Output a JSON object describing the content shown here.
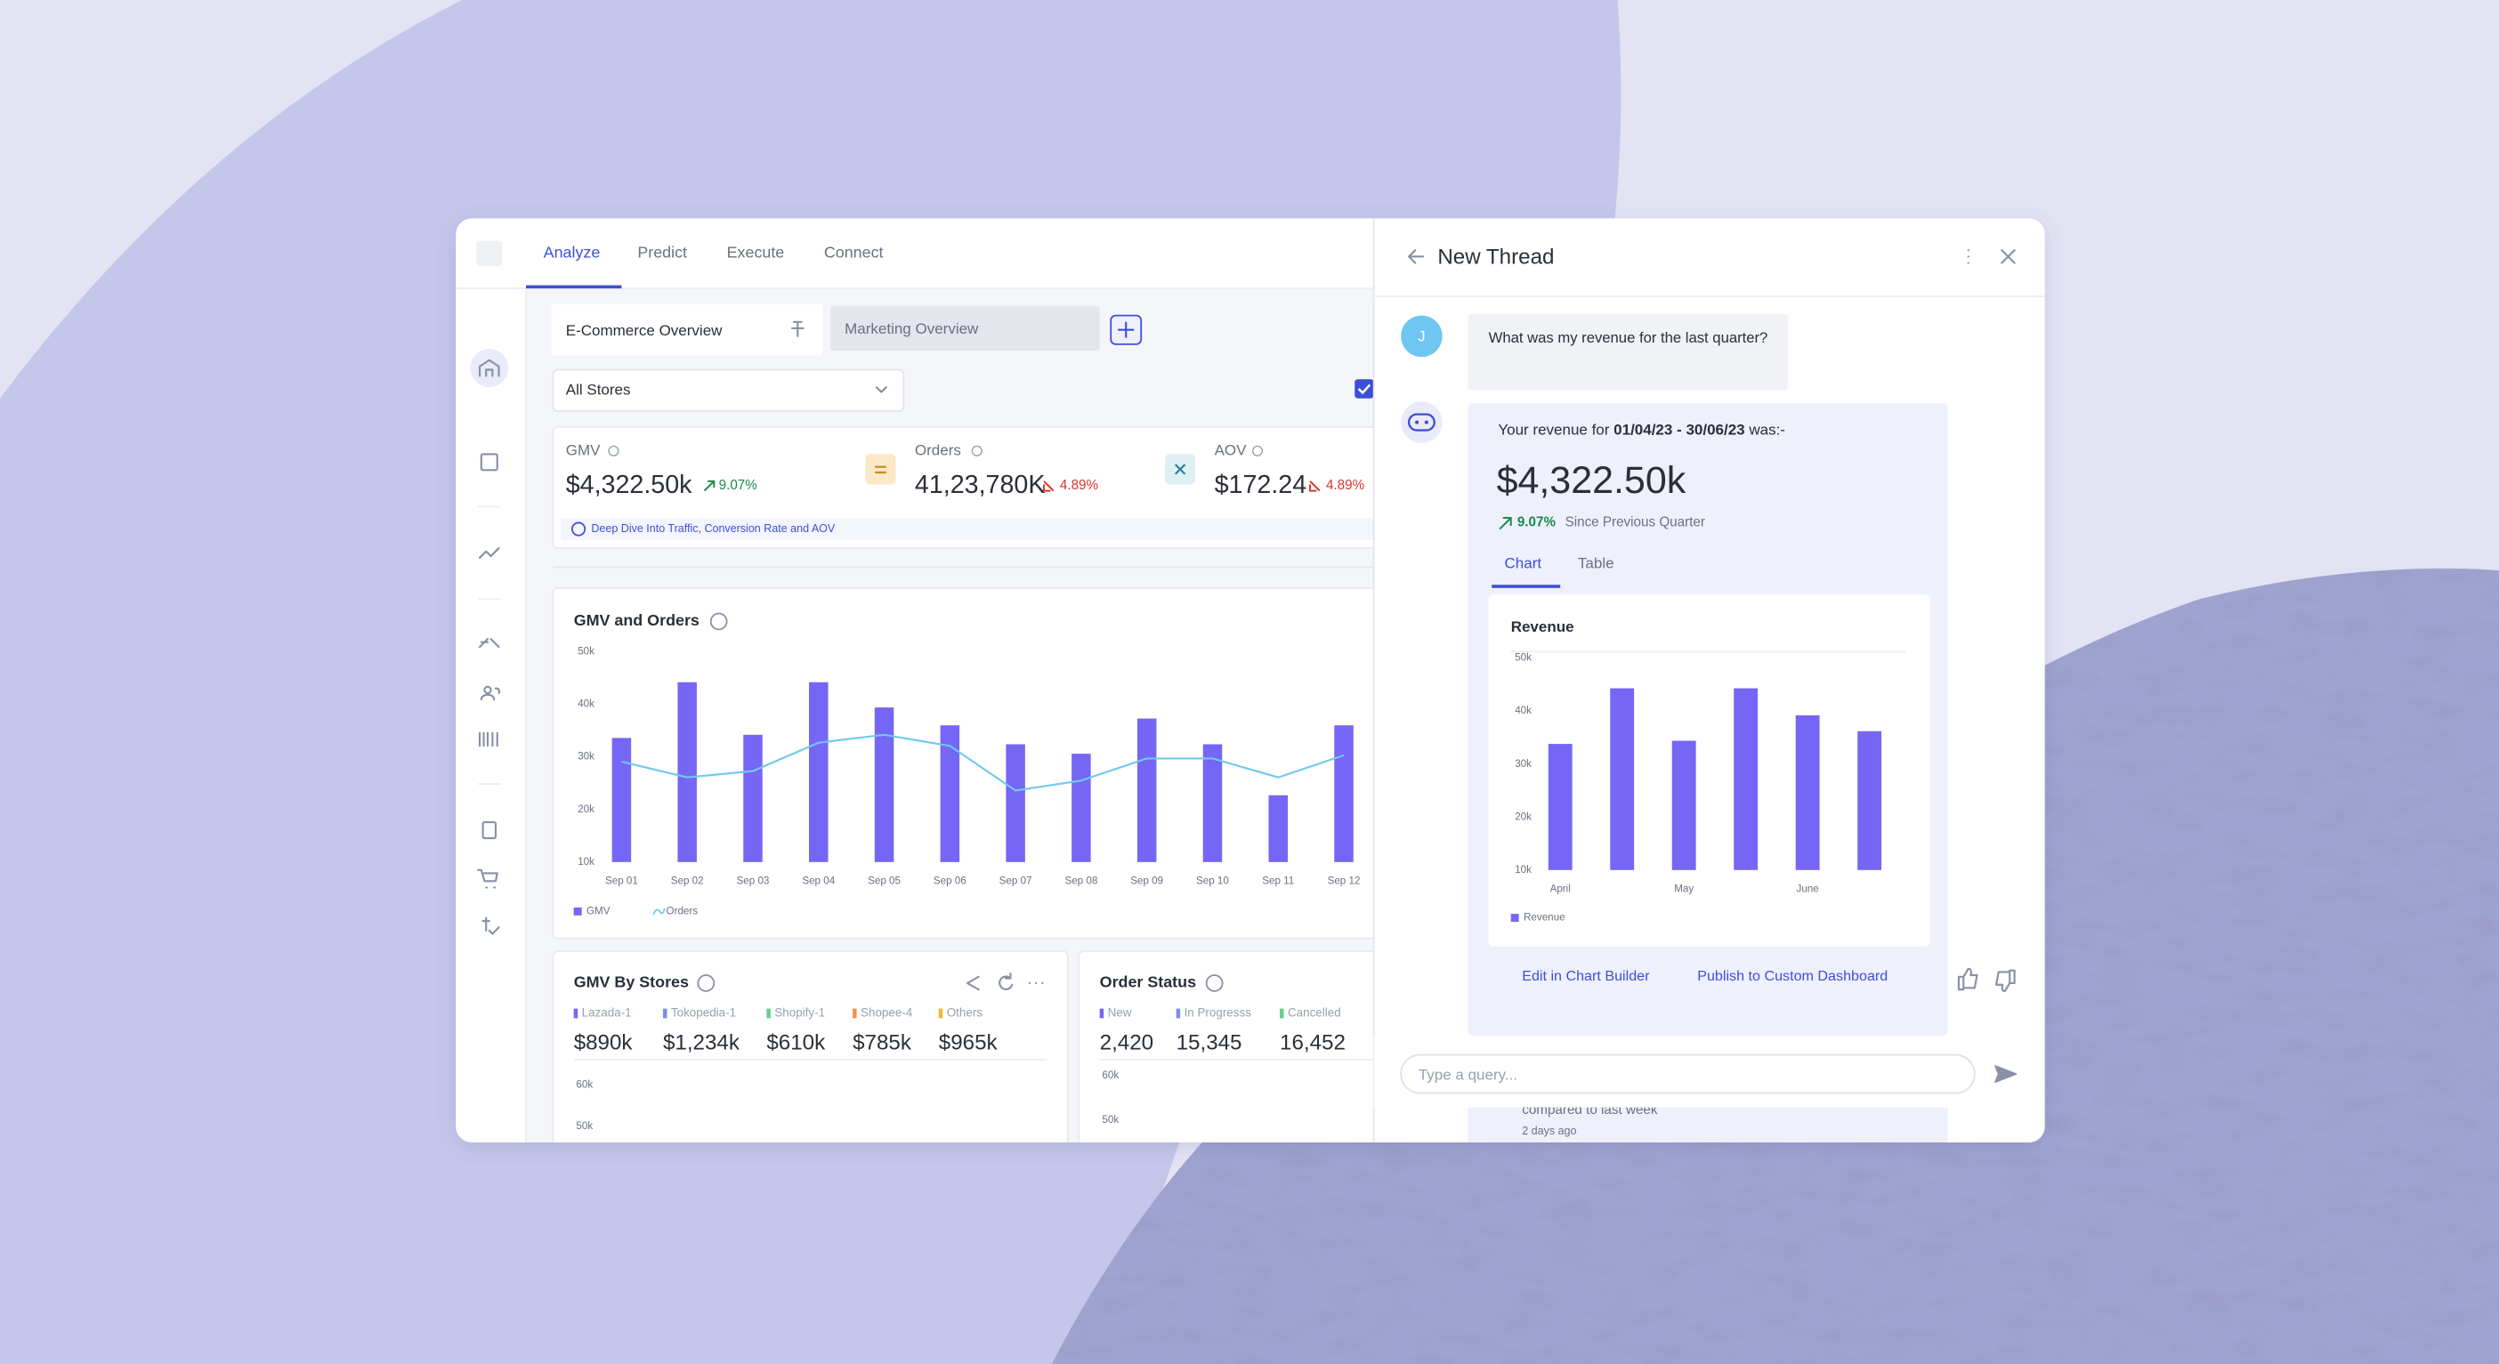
{
  "nav": {
    "tabs": [
      "Analyze",
      "Predict",
      "Execute",
      "Connect"
    ]
  },
  "dashboard": {
    "tabs": [
      "E-Commerce Overview",
      "Marketing Overview"
    ],
    "store_filter": "All Stores",
    "kpis": [
      {
        "label": "GMV",
        "value": "$4,322.50k",
        "change": "9.07%"
      },
      {
        "label": "Orders",
        "value": "41,23,780K",
        "change": "4.89%"
      },
      {
        "label": "AOV",
        "value": "$172.24",
        "change": "4.89%"
      }
    ],
    "kpi_link": "Deep Dive Into Traffic, Conversion Rate and AOV"
  },
  "chart_data": [
    {
      "type": "bar",
      "title": "GMV and Orders",
      "categories": [
        "Sep 01",
        "Sep 02",
        "Sep 03",
        "Sep 04",
        "Sep 05",
        "Sep 06",
        "Sep 07",
        "Sep 08",
        "Sep 09",
        "Sep 10",
        "Sep 11",
        "Sep 12"
      ],
      "series": [
        {
          "name": "GMV",
          "color": "#7566f5",
          "values": [
            33600,
            44200,
            34200,
            44200,
            39400,
            36000,
            32400,
            30600,
            37300,
            32400,
            22700,
            36000
          ]
        },
        {
          "name": "Orders",
          "type": "line",
          "color": "#72c8ef",
          "values": [
            29100,
            26100,
            27300,
            32700,
            34200,
            32100,
            23600,
            25500,
            29700,
            29700,
            26100,
            30300
          ]
        }
      ],
      "ylim": [
        10000,
        50000
      ],
      "yticks": [
        {
          "value": 10000,
          "label": "10k"
        },
        {
          "value": 20000,
          "label": "20k"
        },
        {
          "value": 30000,
          "label": "30k"
        },
        {
          "value": 40000,
          "label": "40k"
        },
        {
          "value": 50000,
          "label": "50k"
        }
      ]
    },
    {
      "type": "line",
      "title": "GMV By Stores",
      "series": [
        {
          "name": "Lazada-1",
          "color": "#7566f5",
          "total": "$890k"
        },
        {
          "name": "Tokopedia-1",
          "color": "#7b8cf2",
          "total": "$1,234k"
        },
        {
          "name": "Shopify-1",
          "color": "#5fd08e",
          "total": "$610k"
        },
        {
          "name": "Shopee-4",
          "color": "#f5914a",
          "total": "$785k"
        },
        {
          "name": "Others",
          "color": "#f5b82e",
          "total": "$965k"
        }
      ],
      "ylim": [
        0,
        60000
      ],
      "yticks": [
        {
          "value": 50000,
          "label": "50k"
        },
        {
          "value": 60000,
          "label": "60k"
        }
      ]
    },
    {
      "type": "bar",
      "title": "Order Status",
      "series": [
        {
          "name": "New",
          "color": "#7566f5",
          "total": "2,420"
        },
        {
          "name": "In Progresss",
          "color": "#7b8cf2",
          "total": "15,345"
        },
        {
          "name": "Cancelled",
          "color": "#5fd08e",
          "total": "16,452"
        }
      ],
      "ylim": [
        0,
        60000
      ],
      "yticks": [
        {
          "value": 50000,
          "label": "50k"
        },
        {
          "value": 60000,
          "label": "60k"
        }
      ]
    },
    {
      "type": "bar",
      "title": "Revenue",
      "categories": [
        "April",
        null,
        "May",
        null,
        "June",
        null
      ],
      "series": [
        {
          "name": "Revenue",
          "color": "#7566f5",
          "values": [
            33800,
            44300,
            34400,
            44300,
            39200,
            36200
          ]
        }
      ],
      "ylim": [
        10000,
        50000
      ],
      "yticks": [
        {
          "value": 10000,
          "label": "10k"
        },
        {
          "value": 20000,
          "label": "20k"
        },
        {
          "value": 30000,
          "label": "30k"
        },
        {
          "value": 40000,
          "label": "40k"
        },
        {
          "value": 50000,
          "label": "50k"
        }
      ]
    }
  ],
  "thread": {
    "title": "New Thread",
    "user_initial": "J",
    "question": "What was my revenue for the last quarter?",
    "answer_prefix": "Your revenue for ",
    "answer_period": "01/04/23 - 30/06/23",
    "answer_suffix": " was:-",
    "total": "$4,322.50k",
    "change": "9.07%",
    "change_note": "Since Previous Quarter",
    "tabs": [
      "Chart",
      "Table"
    ],
    "actions": [
      "Edit in Chart Builder",
      "Publish to Custom Dashboard"
    ],
    "input_placeholder": "Type a query...",
    "older_message": "compared to last week",
    "older_time": "2 days ago"
  }
}
